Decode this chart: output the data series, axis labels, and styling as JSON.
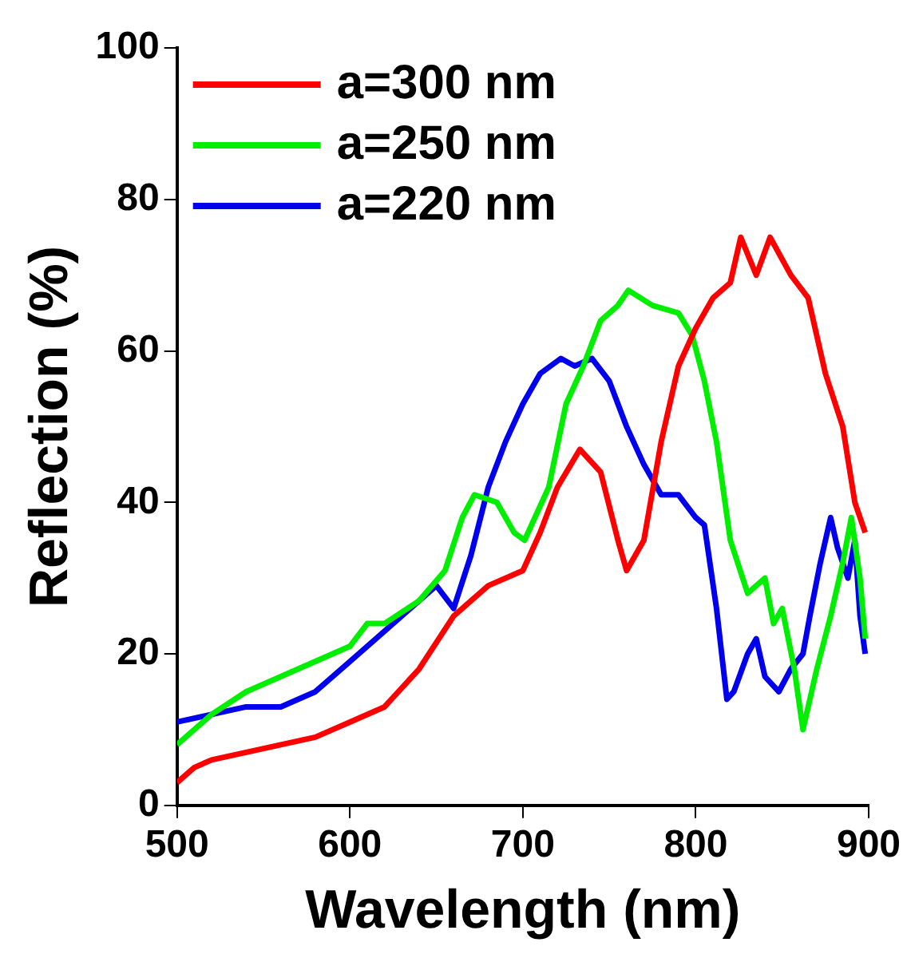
{
  "chart_data": {
    "type": "line",
    "xlabel": "Wavelength (nm)",
    "ylabel": "Reflection (%)",
    "xlim": [
      500,
      900
    ],
    "xticks": [
      500,
      600,
      700,
      800,
      900
    ],
    "ylim": [
      0,
      100
    ],
    "yticks": [
      0,
      20,
      40,
      60,
      80,
      100
    ],
    "grid": false,
    "legend": "top left",
    "marker": "none",
    "line_style": "solid",
    "series": [
      {
        "name": "a=300 nm",
        "color": "#ff0000",
        "x": [
          500,
          510,
          520,
          540,
          560,
          580,
          600,
          620,
          640,
          660,
          680,
          700,
          710,
          720,
          733,
          745,
          755,
          760,
          770,
          780,
          790,
          800,
          810,
          820,
          826,
          835,
          843,
          855,
          865,
          875,
          885,
          892,
          898
        ],
        "values": [
          3,
          5,
          6,
          7,
          8,
          9,
          11,
          13,
          18,
          25,
          29,
          31,
          36,
          42,
          47,
          44,
          35,
          31,
          35,
          48,
          58,
          63,
          67,
          69,
          75,
          70,
          75,
          70,
          67,
          57,
          50,
          40,
          36
        ]
      },
      {
        "name": "a=250 nm",
        "color": "#00ee00",
        "x": [
          500,
          510,
          520,
          540,
          560,
          580,
          600,
          610,
          620,
          640,
          655,
          665,
          672,
          685,
          695,
          701,
          715,
          725,
          735,
          745,
          755,
          761,
          775,
          790,
          798,
          805,
          812,
          820,
          830,
          840,
          845,
          850,
          857,
          862,
          870,
          878,
          885,
          890,
          895,
          898
        ],
        "values": [
          8,
          10,
          12,
          15,
          17,
          19,
          21,
          24,
          24,
          27,
          31,
          38,
          41,
          40,
          36,
          35,
          42,
          53,
          58,
          64,
          66,
          68,
          66,
          65,
          62,
          56,
          48,
          35,
          28,
          30,
          24,
          26,
          18,
          10,
          18,
          25,
          32,
          38,
          30,
          22
        ]
      },
      {
        "name": "a=220 nm",
        "color": "#0000ee",
        "x": [
          500,
          520,
          540,
          560,
          580,
          600,
          620,
          640,
          650,
          660,
          670,
          680,
          690,
          700,
          710,
          722,
          730,
          740,
          750,
          760,
          770,
          780,
          790,
          800,
          805,
          812,
          818,
          822,
          830,
          835,
          840,
          848,
          855,
          862,
          866,
          872,
          878,
          882,
          888,
          892,
          895,
          898
        ],
        "values": [
          11,
          12,
          13,
          13,
          15,
          19,
          23,
          27,
          29,
          26,
          33,
          42,
          48,
          53,
          57,
          59,
          58,
          59,
          56,
          50,
          45,
          41,
          41,
          38,
          37,
          26,
          14,
          15,
          20,
          22,
          17,
          15,
          18,
          20,
          25,
          32,
          38,
          34,
          30,
          35,
          25,
          20
        ]
      }
    ]
  }
}
